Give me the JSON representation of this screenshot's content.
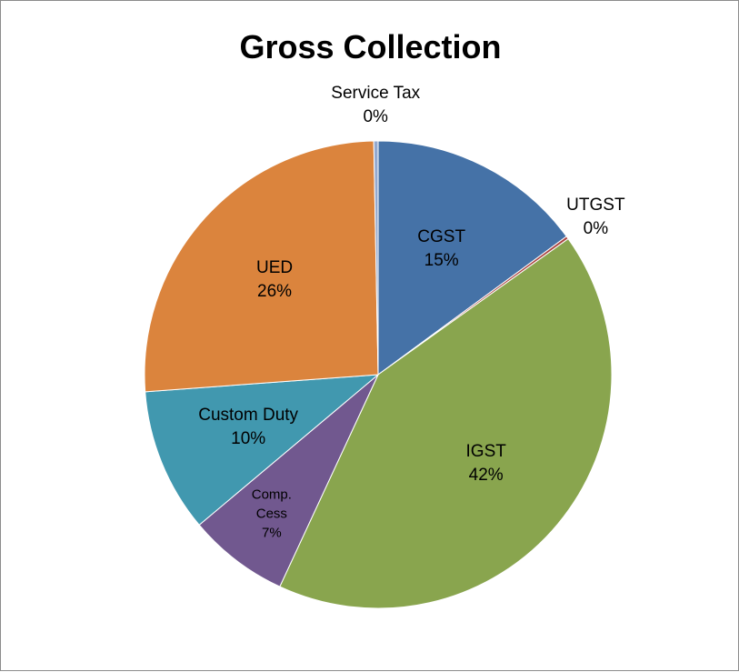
{
  "chart_data": {
    "type": "pie",
    "title": "Gross Collection",
    "categories": [
      "CGST",
      "UTGST",
      "IGST",
      "Comp. Cess",
      "Custom Duty",
      "UED",
      "Service Tax"
    ],
    "values": [
      15,
      0.2,
      42,
      7,
      10,
      26,
      0.3
    ],
    "value_labels": [
      "15%",
      "0%",
      "42%",
      "7%",
      "10%",
      "26%",
      "0%"
    ],
    "colors": [
      "#4572a7",
      "#aa4643",
      "#89a54e",
      "#71588f",
      "#4198af",
      "#db843d",
      "#93a9cf"
    ]
  }
}
